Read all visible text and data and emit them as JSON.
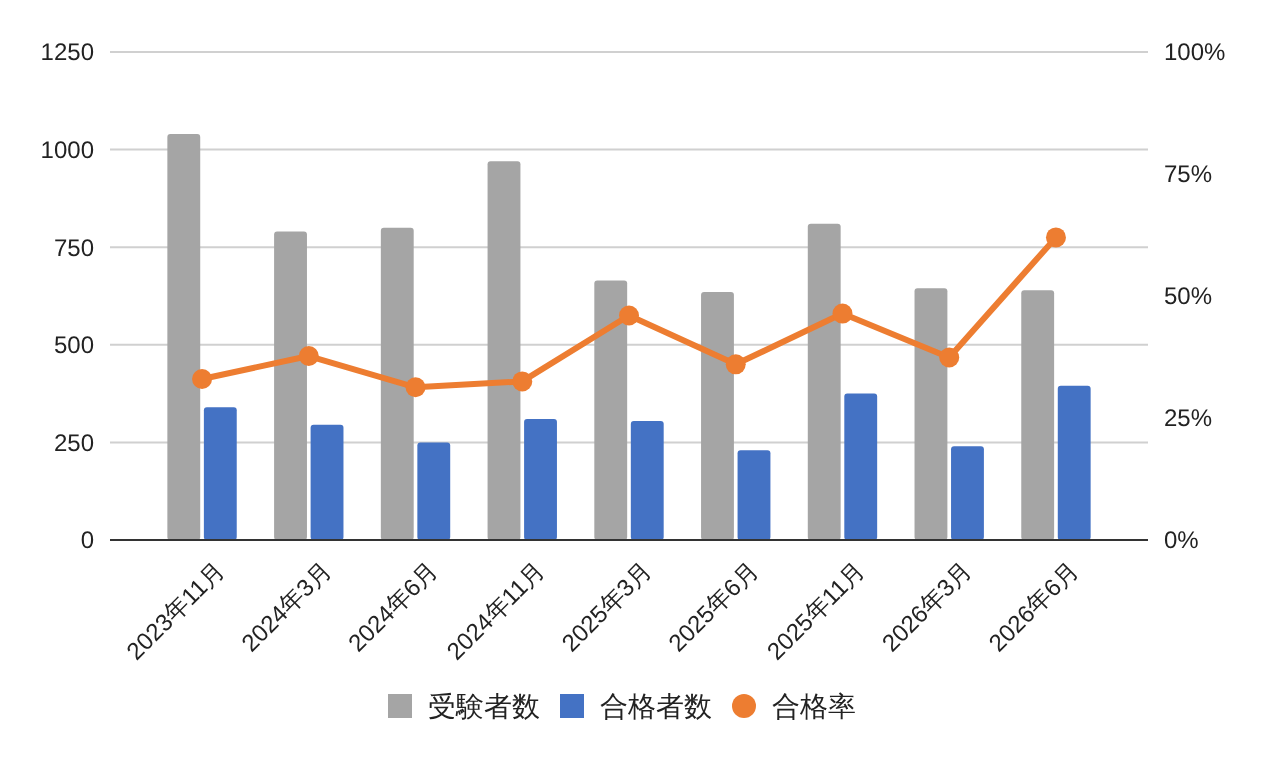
{
  "chart_data": {
    "type": "bar",
    "categories": [
      "2023年11月",
      "2024年3月",
      "2024年6月",
      "2024年11月",
      "2025年3月",
      "2025年6月",
      "2025年11月",
      "2026年3月",
      "2026年6月"
    ],
    "series": [
      {
        "name": "受験者数",
        "color": "#a5a5a5",
        "values": [
          1040,
          790,
          800,
          970,
          665,
          635,
          810,
          645,
          640
        ]
      },
      {
        "name": "合格者数",
        "color": "#4472c4",
        "values": [
          340,
          295,
          250,
          310,
          305,
          230,
          375,
          240,
          395
        ]
      },
      {
        "name": "合格率",
        "type": "line",
        "axis": "y2",
        "color": "#ed7d31",
        "marker": "circle",
        "values": [
          33,
          37.7,
          31.3,
          32.5,
          46,
          36,
          46.4,
          37.4,
          62
        ]
      }
    ],
    "ylim": [
      0,
      1250
    ],
    "yticks": [
      0,
      250,
      500,
      750,
      1000,
      1250
    ],
    "y2lim": [
      0,
      100
    ],
    "y2ticks": [
      {
        "value": 0,
        "label": "0%"
      },
      {
        "value": 25,
        "label": "25%"
      },
      {
        "value": 50,
        "label": "50%"
      },
      {
        "value": 75,
        "label": "75%"
      },
      {
        "value": 100,
        "label": "100%"
      }
    ],
    "grid": "y",
    "legend": "bottom"
  }
}
